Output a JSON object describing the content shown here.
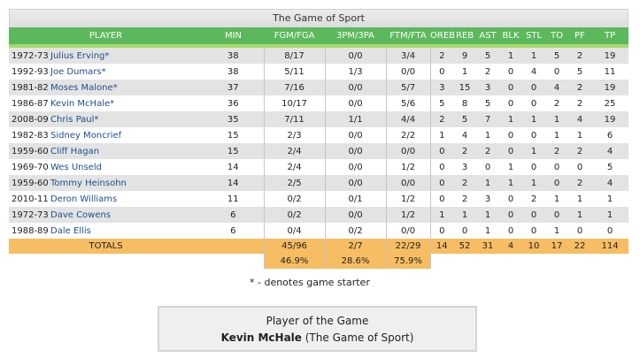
{
  "title": "The Game of Sport",
  "headers": [
    "PLAYER",
    "MIN",
    "FGM/FGA",
    "3PM/3PA",
    "FTM/FTA",
    "OREB",
    "REB",
    "AST",
    "BLK",
    "STL",
    "TO",
    "PF",
    "TP"
  ],
  "rows": [
    {
      "season": "1972-73",
      "player": "Julius Erving*",
      "min": "38",
      "fg": "8/17",
      "three": "0/0",
      "ft": "3/4",
      "oreb": "2",
      "reb": "9",
      "ast": "5",
      "blk": "1",
      "stl": "1",
      "to": "5",
      "pf": "2",
      "tp": "19"
    },
    {
      "season": "1992-93",
      "player": "Joe Dumars*",
      "min": "38",
      "fg": "5/11",
      "three": "1/3",
      "ft": "0/0",
      "oreb": "0",
      "reb": "1",
      "ast": "2",
      "blk": "0",
      "stl": "4",
      "to": "0",
      "pf": "5",
      "tp": "11"
    },
    {
      "season": "1981-82",
      "player": "Moses Malone*",
      "min": "37",
      "fg": "7/16",
      "three": "0/0",
      "ft": "5/7",
      "oreb": "3",
      "reb": "15",
      "ast": "3",
      "blk": "0",
      "stl": "0",
      "to": "4",
      "pf": "2",
      "tp": "19"
    },
    {
      "season": "1986-87",
      "player": "Kevin McHale*",
      "min": "36",
      "fg": "10/17",
      "three": "0/0",
      "ft": "5/6",
      "oreb": "5",
      "reb": "8",
      "ast": "5",
      "blk": "0",
      "stl": "0",
      "to": "2",
      "pf": "2",
      "tp": "25"
    },
    {
      "season": "2008-09",
      "player": "Chris Paul*",
      "min": "35",
      "fg": "7/11",
      "three": "1/1",
      "ft": "4/4",
      "oreb": "2",
      "reb": "5",
      "ast": "7",
      "blk": "1",
      "stl": "1",
      "to": "1",
      "pf": "4",
      "tp": "19"
    },
    {
      "season": "1982-83",
      "player": "Sidney Moncrief",
      "min": "15",
      "fg": "2/3",
      "three": "0/0",
      "ft": "2/2",
      "oreb": "1",
      "reb": "4",
      "ast": "1",
      "blk": "0",
      "stl": "0",
      "to": "1",
      "pf": "1",
      "tp": "6"
    },
    {
      "season": "1959-60",
      "player": "Cliff Hagan",
      "min": "15",
      "fg": "2/4",
      "three": "0/0",
      "ft": "0/0",
      "oreb": "0",
      "reb": "2",
      "ast": "2",
      "blk": "0",
      "stl": "1",
      "to": "2",
      "pf": "2",
      "tp": "4"
    },
    {
      "season": "1969-70",
      "player": "Wes Unseld",
      "min": "14",
      "fg": "2/4",
      "three": "0/0",
      "ft": "1/2",
      "oreb": "0",
      "reb": "3",
      "ast": "0",
      "blk": "1",
      "stl": "0",
      "to": "0",
      "pf": "0",
      "tp": "5"
    },
    {
      "season": "1959-60",
      "player": "Tommy Heinsohn",
      "min": "14",
      "fg": "2/5",
      "three": "0/0",
      "ft": "0/0",
      "oreb": "0",
      "reb": "2",
      "ast": "1",
      "blk": "1",
      "stl": "1",
      "to": "0",
      "pf": "2",
      "tp": "4"
    },
    {
      "season": "2010-11",
      "player": "Deron Williams",
      "min": "11",
      "fg": "0/2",
      "three": "0/1",
      "ft": "1/2",
      "oreb": "0",
      "reb": "2",
      "ast": "3",
      "blk": "0",
      "stl": "2",
      "to": "1",
      "pf": "1",
      "tp": "1"
    },
    {
      "season": "1972-73",
      "player": "Dave Cowens",
      "min": "6",
      "fg": "0/2",
      "three": "0/0",
      "ft": "1/2",
      "oreb": "1",
      "reb": "1",
      "ast": "1",
      "blk": "0",
      "stl": "0",
      "to": "0",
      "pf": "1",
      "tp": "1"
    },
    {
      "season": "1988-89",
      "player": "Dale Ellis",
      "min": "6",
      "fg": "0/4",
      "three": "0/2",
      "ft": "0/0",
      "oreb": "0",
      "reb": "0",
      "ast": "1",
      "blk": "0",
      "stl": "0",
      "to": "1",
      "pf": "0",
      "tp": "0"
    }
  ],
  "totals": {
    "label": "TOTALS",
    "min": "",
    "fg": "45/96",
    "three": "2/7",
    "ft": "22/29",
    "oreb": "14",
    "reb": "52",
    "ast": "31",
    "blk": "4",
    "stl": "10",
    "to": "17",
    "pf": "22",
    "tp": "114"
  },
  "percentages": {
    "fg": "46.9%",
    "three": "28.6%",
    "ft": "75.9%"
  },
  "footnote": "* - denotes game starter",
  "player_of_game": {
    "heading": "Player of the Game",
    "name": "Kevin McHale",
    "suffix": " (The Game of Sport)"
  },
  "colors": {
    "header_green": "#5cb85c",
    "totals_orange": "#f7bd63",
    "link_blue": "#1d4f8c",
    "stripe": "#e3e3e3"
  }
}
